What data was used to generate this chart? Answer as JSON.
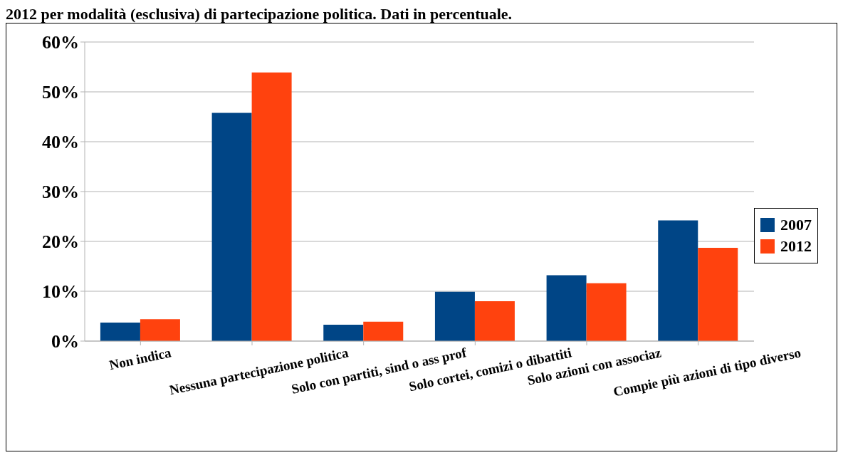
{
  "chart_data": {
    "type": "bar",
    "title": "2012 per modalità (esclusiva) di partecipazione politica. Dati in percentuale.",
    "categories": [
      "Non indica",
      "Nessuna partecipazione politica",
      "Solo con partiti, sind o ass prof",
      "Solo cortei, comizi o dibattiti",
      "Solo azioni con associaz",
      "Compie più azioni di tipo diverso"
    ],
    "series": [
      {
        "name": "2007",
        "color": "#004586",
        "values": [
          3.7,
          45.8,
          3.3,
          9.9,
          13.2,
          24.2
        ]
      },
      {
        "name": "2012",
        "color": "#ff420e",
        "values": [
          4.4,
          53.9,
          3.9,
          8.0,
          11.6,
          18.7
        ]
      }
    ],
    "ylim": [
      0,
      60
    ],
    "yticks": [
      {
        "value": 0,
        "label": "0%"
      },
      {
        "value": 10,
        "label": "10%"
      },
      {
        "value": 20,
        "label": "20%"
      },
      {
        "value": 30,
        "label": "30%"
      },
      {
        "value": 40,
        "label": "40%"
      },
      {
        "value": 50,
        "label": "50%"
      },
      {
        "value": 60,
        "label": "60%"
      }
    ],
    "grid": "y",
    "legend": "right"
  }
}
